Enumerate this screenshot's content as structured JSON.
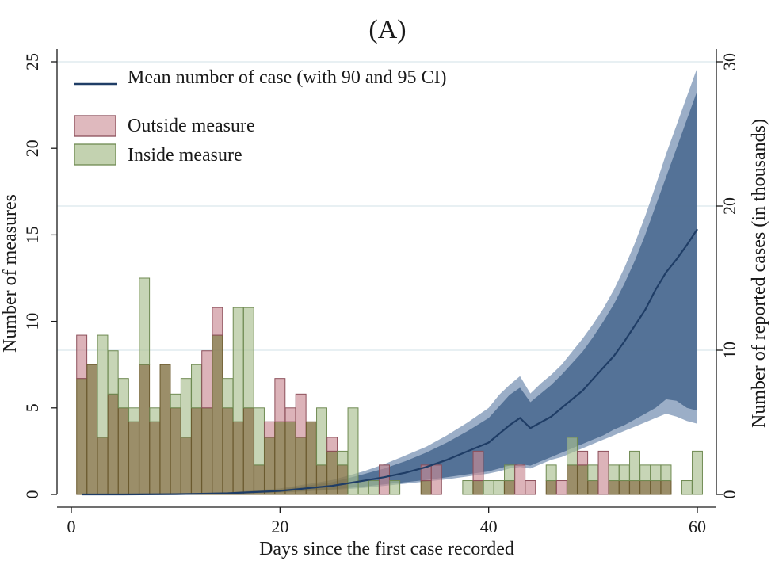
{
  "chart_data": {
    "type": "bar",
    "title": "(A)",
    "xlabel": "Days since the first case recorded",
    "ylabel": "Number of measures",
    "y2label": "Number of reported cases (in thousands)",
    "xlim": [
      -1,
      61
    ],
    "ylim": [
      0,
      25
    ],
    "y2lim": [
      0,
      30
    ],
    "xticks": [
      0,
      20,
      40,
      60
    ],
    "yticks": [
      0,
      5,
      10,
      15,
      20,
      25
    ],
    "y2ticks": [
      0,
      10,
      20,
      30
    ],
    "grid": true,
    "legend_position": "top-left",
    "legend": {
      "line": "Mean number of case (with 90 and 95 CI)",
      "outside": "Outside measure",
      "inside": "Inside measure"
    },
    "colors": {
      "outside": "#c98a93",
      "inside": "#a9bf8f",
      "overlap": "#8a7a4f",
      "band95": "#8aa0bd",
      "band90": "#4c6b91",
      "mean": "#1f3d66",
      "grid": "#dbe7ec"
    },
    "days": [
      1,
      2,
      3,
      4,
      5,
      6,
      7,
      8,
      9,
      10,
      11,
      12,
      13,
      14,
      15,
      16,
      17,
      18,
      19,
      20,
      21,
      22,
      23,
      24,
      25,
      26,
      27,
      28,
      29,
      30,
      31,
      32,
      33,
      34,
      35,
      36,
      37,
      38,
      39,
      40,
      41,
      42,
      43,
      44,
      45,
      46,
      47,
      48,
      49,
      50,
      51,
      52,
      53,
      54,
      55,
      56,
      57,
      58,
      59,
      60
    ],
    "series": [
      {
        "name": "Outside measure",
        "values": [
          9.2,
          7.5,
          3.3,
          5.8,
          5,
          4.2,
          7.5,
          4.2,
          7.5,
          5,
          3.3,
          5,
          8.3,
          10.8,
          5,
          4.2,
          5,
          1.7,
          4.2,
          6.7,
          5,
          5.8,
          4.2,
          1.7,
          3.3,
          1.7,
          0,
          0,
          0,
          1.7,
          0,
          0,
          0,
          1.7,
          1.7,
          0,
          0,
          0,
          2.5,
          0,
          0,
          0.8,
          1.7,
          0.8,
          0,
          0.8,
          0.8,
          1.7,
          2.5,
          0.8,
          2.5,
          0.8,
          0.8,
          0.8,
          0.8,
          0.8,
          0.8,
          0,
          0,
          0
        ]
      },
      {
        "name": "Inside measure",
        "values": [
          6.7,
          7.5,
          9.2,
          8.3,
          6.7,
          5,
          12.5,
          5,
          7.5,
          5.8,
          6.7,
          7.5,
          5,
          9.2,
          6.7,
          10.8,
          10.8,
          5,
          3.3,
          4.2,
          4.2,
          3.3,
          4.2,
          5,
          2.5,
          2.5,
          5,
          0.8,
          0.8,
          0,
          0.8,
          0,
          0,
          0.8,
          0,
          0,
          0,
          0.8,
          0.8,
          0.8,
          0.8,
          1.7,
          0,
          0,
          0,
          1.7,
          0,
          3.3,
          1.7,
          1.7,
          0,
          1.7,
          1.7,
          2.5,
          1.7,
          1.7,
          1.7,
          0,
          0.8,
          2.5
        ]
      }
    ],
    "mean_cases_thousands": {
      "x": [
        1,
        5,
        10,
        15,
        20,
        25,
        28,
        30,
        32,
        34,
        36,
        38,
        40,
        41,
        42,
        43,
        44,
        45,
        46,
        47,
        48,
        49,
        50,
        51,
        52,
        53,
        54,
        55,
        56,
        57,
        58,
        59,
        60
      ],
      "mean": [
        0,
        0,
        0.02,
        0.08,
        0.25,
        0.6,
        0.95,
        1.2,
        1.5,
        1.9,
        2.4,
        3.0,
        3.6,
        4.2,
        4.8,
        5.3,
        4.6,
        5.0,
        5.4,
        6.0,
        6.6,
        7.2,
        8.0,
        8.8,
        9.6,
        10.6,
        11.7,
        12.8,
        14.2,
        15.4,
        16.3,
        17.3,
        18.4
      ],
      "ci90_low": [
        0,
        0,
        0.01,
        0.05,
        0.15,
        0.35,
        0.55,
        0.7,
        0.85,
        1.0,
        1.2,
        1.4,
        1.6,
        1.8,
        2.0,
        2.1,
        2.0,
        2.3,
        2.6,
        2.9,
        3.2,
        3.5,
        3.8,
        4.1,
        4.5,
        4.8,
        5.2,
        5.6,
        6.0,
        6.6,
        6.5,
        6.0,
        5.8
      ],
      "ci90_high": [
        0,
        0.01,
        0.04,
        0.12,
        0.35,
        0.85,
        1.4,
        1.8,
        2.3,
        2.9,
        3.6,
        4.4,
        5.3,
        6.1,
        6.9,
        7.4,
        6.4,
        7.0,
        7.6,
        8.3,
        9.1,
        9.9,
        10.9,
        12.0,
        13.2,
        14.6,
        16.2,
        18.0,
        20.0,
        22.0,
        24.0,
        26.0,
        28.0
      ],
      "ci95_low": [
        0,
        0,
        0.01,
        0.04,
        0.12,
        0.3,
        0.45,
        0.6,
        0.75,
        0.9,
        1.05,
        1.25,
        1.45,
        1.6,
        1.8,
        1.9,
        1.8,
        2.1,
        2.4,
        2.6,
        2.9,
        3.2,
        3.5,
        3.8,
        4.1,
        4.4,
        4.7,
        5.0,
        5.3,
        5.6,
        5.4,
        5.1,
        4.9
      ],
      "ci95_high": [
        0,
        0.01,
        0.05,
        0.15,
        0.42,
        1.0,
        1.6,
        2.1,
        2.7,
        3.3,
        4.1,
        5.0,
        6.0,
        6.9,
        7.6,
        8.2,
        7.0,
        7.7,
        8.3,
        9.0,
        9.9,
        10.8,
        11.8,
        12.9,
        14.2,
        15.7,
        17.4,
        19.3,
        21.4,
        23.6,
        25.6,
        27.6,
        29.6
      ]
    }
  }
}
